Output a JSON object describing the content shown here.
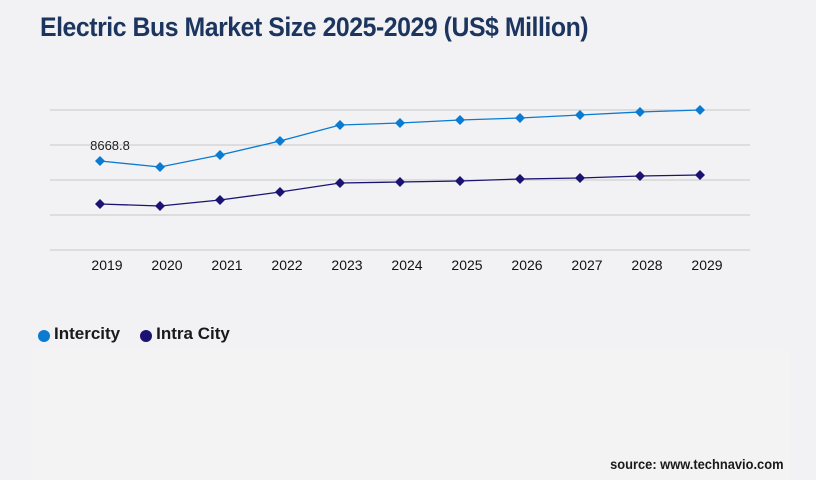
{
  "title": "Electric Bus Market Size 2025-2029 (US$ Million)",
  "source": "source: www.technavio.com",
  "colors": {
    "intercity": "#0a7bd1",
    "intra_city": "#1a1372",
    "title": "#1b355e",
    "grid": "#c8c8c8",
    "background": "#f2f2f5"
  },
  "legend": [
    {
      "label": "Intercity",
      "color": "#0a7bd1"
    },
    {
      "label": "Intra City",
      "color": "#1a1372"
    }
  ],
  "chart_data": {
    "type": "line",
    "title": "Electric Bus Market Size 2025-2029 (US$ Million)",
    "xlabel": "",
    "ylabel": "",
    "categories": [
      "2019",
      "2020",
      "2021",
      "2022",
      "2023",
      "2024",
      "2025",
      "2026",
      "2027",
      "2028",
      "2029"
    ],
    "series": [
      {
        "name": "Intercity",
        "color": "#0a7bd1",
        "values": [
          8668.8,
          8084,
          9253,
          10617,
          12175,
          12370,
          12662,
          12857,
          13149,
          13441,
          13636
        ]
      },
      {
        "name": "Intra City",
        "color": "#1a1372",
        "values": [
          4480,
          4285,
          4870,
          5649,
          6526,
          6623,
          6721,
          6916,
          7013,
          7208,
          7305
        ]
      }
    ],
    "annotations": [
      {
        "category": "2019",
        "series": "Intercity",
        "text": "8668.8"
      }
    ],
    "ylim": [
      0,
      13636
    ],
    "grid": true,
    "y_tick_labels_visible": false,
    "legend_position": "bottom-left"
  }
}
